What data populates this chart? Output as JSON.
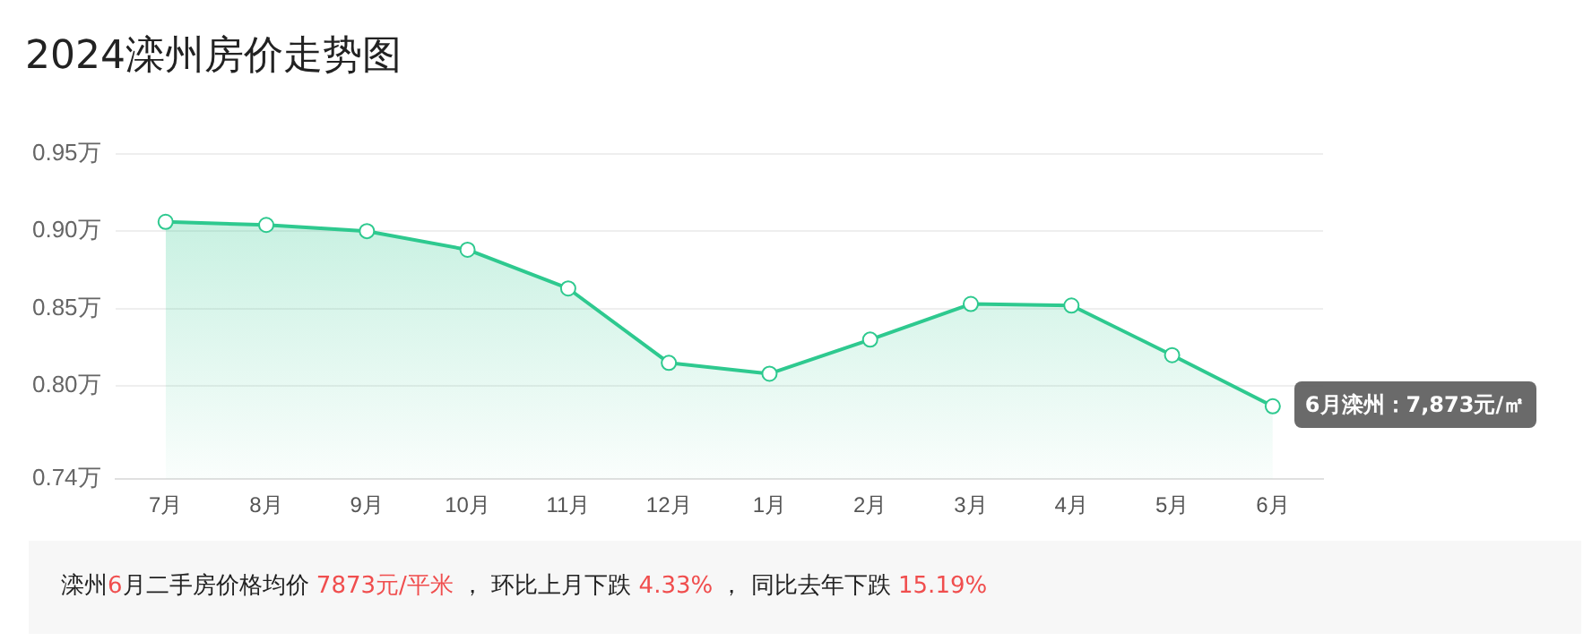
{
  "chart_data": {
    "type": "area",
    "title": "2024滦州房价走势图",
    "categories": [
      "7月",
      "8月",
      "9月",
      "10月",
      "11月",
      "12月",
      "1月",
      "2月",
      "3月",
      "4月",
      "5月",
      "6月"
    ],
    "series": [
      {
        "color": "#2ec98f",
        "values": [
          0.906,
          0.904,
          0.9,
          0.888,
          0.863,
          0.815,
          0.808,
          0.83,
          0.853,
          0.852,
          0.82,
          0.787
        ]
      }
    ],
    "ylim": [
      0.74,
      0.95
    ],
    "yticks": [
      {
        "value": 0.74,
        "label": "0.74万"
      },
      {
        "value": 0.8,
        "label": "0.80万"
      },
      {
        "value": 0.85,
        "label": "0.85万"
      },
      {
        "value": 0.9,
        "label": "0.90万"
      },
      {
        "value": 0.95,
        "label": "0.95万"
      }
    ],
    "grid": "y",
    "marker": "circle",
    "legend": false,
    "annotations": [
      {
        "text": "6月滦州：7,873元/㎡",
        "x": "6月",
        "y": 0.787
      },
      "滦州6月二手房价格均价 7873元/平米 ， 环比上月下跌 4.33% ， 同比去年下跌 15.19%"
    ]
  }
}
